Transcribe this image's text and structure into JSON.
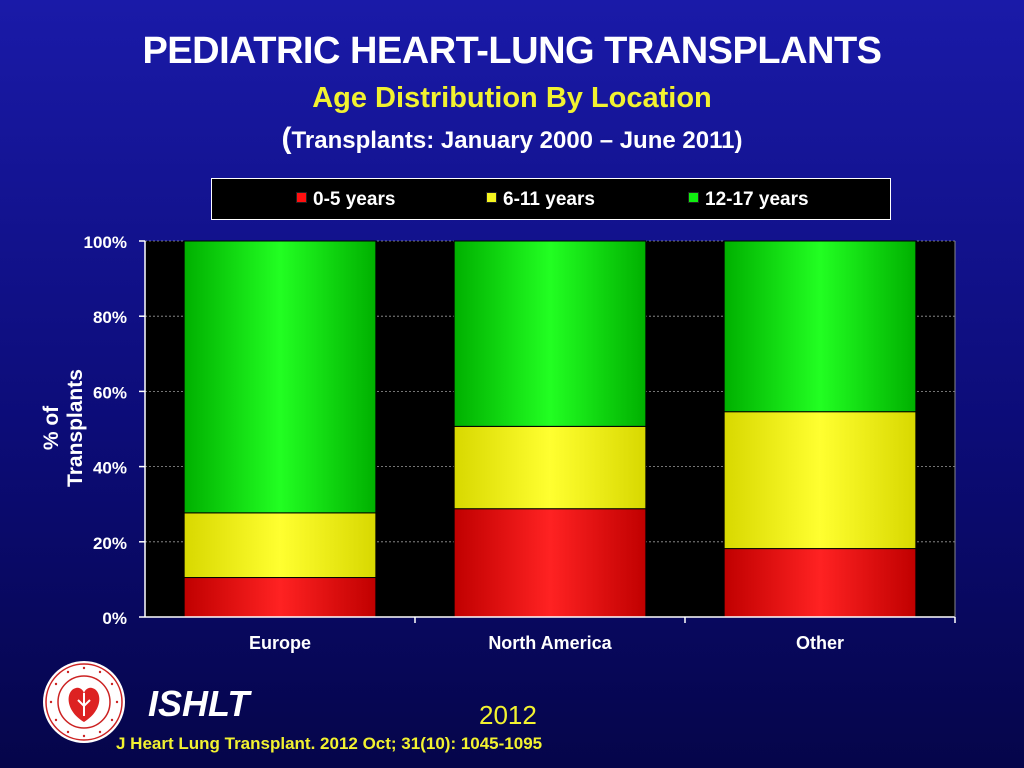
{
  "titles": {
    "main": "PEDIATRIC HEART-LUNG TRANSPLANTS",
    "subtitle": "Age Distribution By Location",
    "period_open": "(",
    "period": "Transplants: January 2000 – June 2011)"
  },
  "colors": {
    "title": "#ffffff",
    "subtitle": "#f2f230",
    "plot_bg": "#000000"
  },
  "chart_data": {
    "type": "bar",
    "stacked": true,
    "categories": [
      "Europe",
      "North America",
      "Other"
    ],
    "series": [
      {
        "name": "0-5 years",
        "color": "#ff1010",
        "values": [
          10.5,
          28.8,
          18.2
        ]
      },
      {
        "name": "6-11 years",
        "color": "#f5f520",
        "values": [
          17.2,
          21.9,
          36.4
        ]
      },
      {
        "name": "12-17 years",
        "color": "#10ee10",
        "values": [
          72.3,
          49.3,
          45.4
        ]
      }
    ],
    "ylabel": "% of Transplants",
    "ylim": [
      0,
      100
    ],
    "yticks": [
      "0%",
      "20%",
      "40%",
      "60%",
      "80%",
      "100%"
    ],
    "grid": true,
    "legend_position": "top"
  },
  "logo": {
    "ring_text": "INTERNATIONAL SOCIETY FOR HEART & LUNG TRANSPLANTATION",
    "icon": "heart-lung-seal-icon"
  },
  "footer": {
    "org": "ISHLT",
    "year": "2012",
    "citation": "J Heart Lung Transplant.  2012 Oct; 31(10): 1045-1095"
  }
}
